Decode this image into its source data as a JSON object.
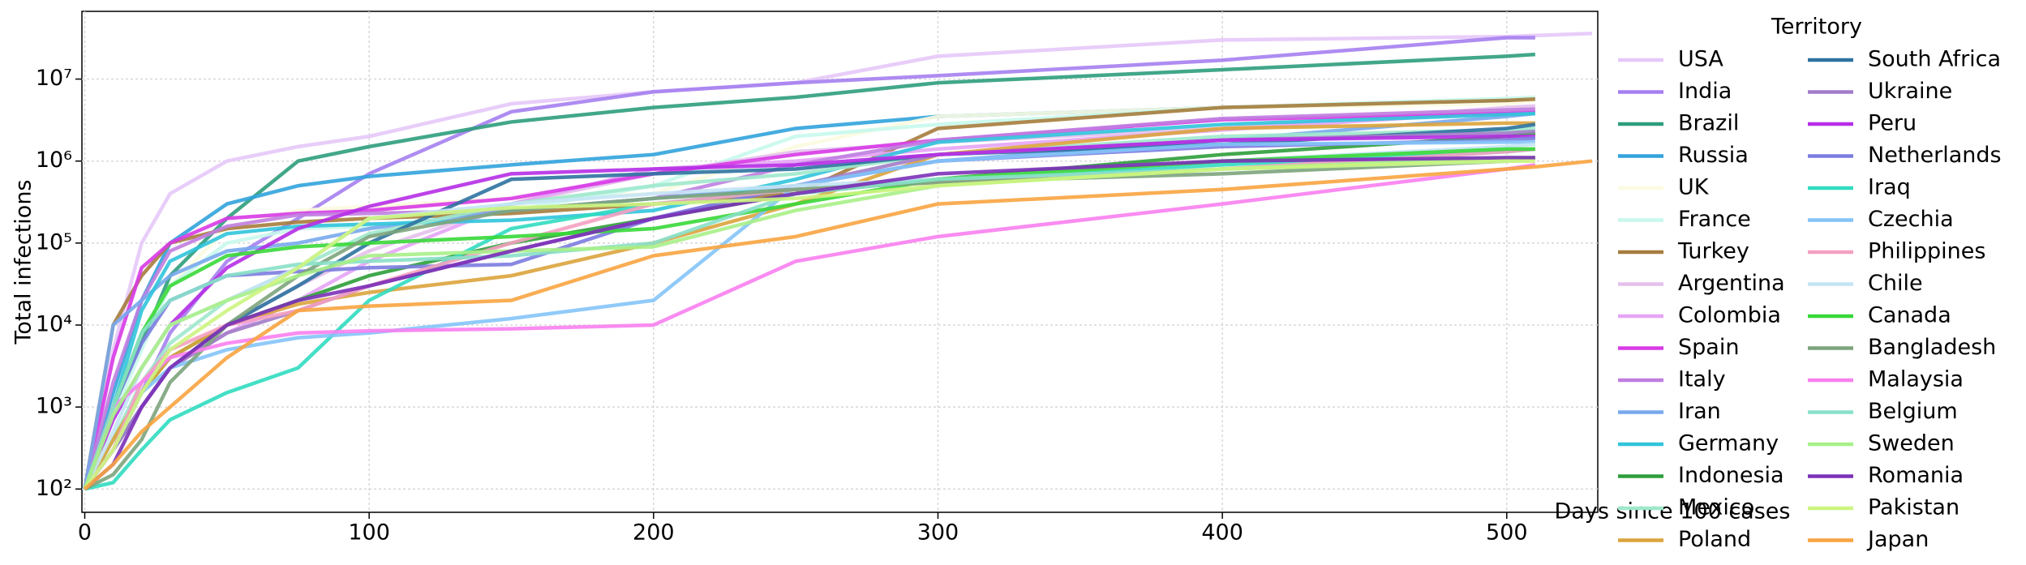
{
  "chart_data": {
    "type": "line",
    "xlabel": "Days since 100 cases",
    "ylabel": "Total infections",
    "legend_title": "Territory",
    "log_y": true,
    "grid": true,
    "legend": "outside right",
    "xlim": [
      -1,
      532
    ],
    "ylim": [
      52,
      67000000
    ],
    "xticks": [
      0,
      100,
      200,
      300,
      400,
      500
    ],
    "yticks": [
      {
        "value": 100,
        "label": "10²"
      },
      {
        "value": 1000,
        "label": "10³"
      },
      {
        "value": 10000,
        "label": "10⁴"
      },
      {
        "value": 100000,
        "label": "10⁵"
      },
      {
        "value": 1000000,
        "label": "10⁶"
      },
      {
        "value": 10000000,
        "label": "10⁷"
      }
    ],
    "x": [
      0,
      10,
      20,
      30,
      50,
      75,
      100,
      150,
      200,
      250,
      300,
      400,
      500,
      510,
      530
    ],
    "series": [
      {
        "name": "USA",
        "color": "#e6c8f8",
        "values": [
          100,
          5000,
          100000,
          400000,
          1000000,
          1500000,
          2000000,
          5000000,
          7000000,
          9000000,
          19000000,
          30000000,
          33000000,
          34000000,
          36000000
        ]
      },
      {
        "name": "India",
        "color": "#a57ff0",
        "values": [
          100,
          300,
          1500,
          8000,
          60000,
          200000,
          700000,
          4000000,
          7000000,
          9000000,
          11000000,
          17000000,
          32000000,
          32000000,
          null
        ]
      },
      {
        "name": "Brazil",
        "color": "#2e9d7c",
        "values": [
          100,
          1000,
          6000,
          40000,
          200000,
          1000000,
          1500000,
          3000000,
          4500000,
          6000000,
          9000000,
          13000000,
          19000000,
          20000000,
          null
        ]
      },
      {
        "name": "Russia",
        "color": "#31a3dc",
        "values": [
          100,
          1500,
          20000,
          100000,
          300000,
          500000,
          650000,
          900000,
          1200000,
          2500000,
          3500000,
          4500000,
          5500000,
          5700000,
          null
        ]
      },
      {
        "name": "UK",
        "color": "#fbfbe0",
        "values": [
          100,
          1000,
          8000,
          30000,
          150000,
          250000,
          280000,
          350000,
          400000,
          1500000,
          3500000,
          4500000,
          5000000,
          5500000,
          null
        ]
      },
      {
        "name": "France",
        "color": "#c8f8ec",
        "values": [
          100,
          800,
          5000,
          30000,
          100000,
          150000,
          160000,
          250000,
          500000,
          2000000,
          2800000,
          4500000,
          5800000,
          6000000,
          null
        ]
      },
      {
        "name": "Turkey",
        "color": "#a67c3c",
        "values": [
          100,
          10000,
          40000,
          100000,
          150000,
          180000,
          200000,
          230000,
          300000,
          400000,
          2500000,
          4500000,
          5500000,
          5700000,
          null
        ]
      },
      {
        "name": "Argentina",
        "color": "#e4c0ec",
        "values": [
          100,
          300,
          1000,
          3000,
          10000,
          30000,
          80000,
          300000,
          700000,
          1300000,
          1700000,
          2500000,
          4500000,
          4700000,
          null
        ]
      },
      {
        "name": "Colombia",
        "color": "#e6a4f6",
        "values": [
          100,
          300,
          1000,
          3000,
          8000,
          20000,
          60000,
          300000,
          800000,
          1000000,
          1400000,
          2400000,
          4000000,
          4200000,
          null
        ]
      },
      {
        "name": "Spain",
        "color": "#d83ae6",
        "values": [
          100,
          4000,
          50000,
          100000,
          200000,
          230000,
          250000,
          350000,
          700000,
          1200000,
          1800000,
          3200000,
          3800000,
          3900000,
          null
        ]
      },
      {
        "name": "Italy",
        "color": "#c07ee0",
        "values": [
          100,
          2000,
          20000,
          80000,
          160000,
          220000,
          230000,
          250000,
          350000,
          900000,
          1800000,
          3300000,
          4200000,
          4300000,
          null
        ]
      },
      {
        "name": "Iran",
        "color": "#78a8ec",
        "values": [
          100,
          10000,
          20000,
          40000,
          80000,
          100000,
          150000,
          250000,
          350000,
          500000,
          1000000,
          1800000,
          3500000,
          3800000,
          null
        ]
      },
      {
        "name": "Germany",
        "color": "#30c4dc",
        "values": [
          100,
          1000,
          15000,
          60000,
          130000,
          160000,
          170000,
          190000,
          250000,
          600000,
          1700000,
          2800000,
          3700000,
          3800000,
          null
        ]
      },
      {
        "name": "Indonesia",
        "color": "#2e9e3a",
        "values": [
          100,
          400,
          1500,
          4000,
          10000,
          20000,
          40000,
          100000,
          200000,
          400000,
          600000,
          1200000,
          2000000,
          2200000,
          null
        ]
      },
      {
        "name": "Mexico",
        "color": "#9ee8cc",
        "values": [
          100,
          400,
          2000,
          6000,
          20000,
          50000,
          130000,
          300000,
          500000,
          700000,
          1200000,
          2000000,
          2400000,
          2500000,
          null
        ]
      },
      {
        "name": "Poland",
        "color": "#dca43c",
        "values": [
          100,
          400,
          1500,
          4000,
          10000,
          18000,
          25000,
          40000,
          100000,
          300000,
          1200000,
          2500000,
          2900000,
          2900000,
          null
        ]
      },
      {
        "name": "South Africa",
        "color": "#2e72a0",
        "values": [
          100,
          300,
          1000,
          3000,
          10000,
          30000,
          100000,
          600000,
          700000,
          800000,
          1200000,
          1600000,
          2500000,
          2800000,
          null
        ]
      },
      {
        "name": "Ukraine",
        "color": "#a27cc8",
        "values": [
          100,
          300,
          1000,
          3000,
          8000,
          15000,
          30000,
          80000,
          200000,
          500000,
          1200000,
          1800000,
          2200000,
          2300000,
          null
        ]
      },
      {
        "name": "Peru",
        "color": "#b62ee6",
        "values": [
          100,
          700,
          3000,
          10000,
          50000,
          150000,
          280000,
          700000,
          800000,
          900000,
          1200000,
          1800000,
          2000000,
          2000000,
          null
        ]
      },
      {
        "name": "Netherlands",
        "color": "#7c7ce0",
        "values": [
          100,
          1000,
          6000,
          20000,
          40000,
          45000,
          50000,
          55000,
          200000,
          500000,
          1000000,
          1500000,
          1800000,
          1900000,
          null
        ]
      },
      {
        "name": "Iraq",
        "color": "#30dcc0",
        "values": [
          100,
          120,
          300,
          700,
          1500,
          3000,
          20000,
          150000,
          300000,
          450000,
          600000,
          900000,
          1300000,
          1400000,
          null
        ]
      },
      {
        "name": "Czechia",
        "color": "#84c4f8",
        "values": [
          100,
          300,
          1500,
          3000,
          5000,
          7000,
          8000,
          12000,
          20000,
          500000,
          1000000,
          1600000,
          1700000,
          1700000,
          null
        ]
      },
      {
        "name": "Philippines",
        "color": "#f4a0c0",
        "values": [
          100,
          300,
          2000,
          5000,
          10000,
          15000,
          30000,
          100000,
          300000,
          450000,
          550000,
          800000,
          1300000,
          1400000,
          null
        ]
      },
      {
        "name": "Chile",
        "color": "#c4e4f4",
        "values": [
          100,
          500,
          3000,
          10000,
          20000,
          50000,
          200000,
          300000,
          400000,
          500000,
          600000,
          1000000,
          1500000,
          1600000,
          null
        ]
      },
      {
        "name": "Canada",
        "color": "#38d838",
        "values": [
          100,
          1000,
          8000,
          30000,
          70000,
          90000,
          100000,
          120000,
          150000,
          300000,
          600000,
          1000000,
          1400000,
          1400000,
          null
        ]
      },
      {
        "name": "Bangladesh",
        "color": "#7ca47c",
        "values": [
          100,
          150,
          400,
          2000,
          10000,
          40000,
          120000,
          250000,
          350000,
          450000,
          550000,
          700000,
          1000000,
          1100000,
          null
        ]
      },
      {
        "name": "Malaysia",
        "color": "#f880f0",
        "values": [
          100,
          1000,
          2000,
          4000,
          6000,
          8000,
          8500,
          9000,
          10000,
          60000,
          120000,
          300000,
          800000,
          900000,
          null
        ]
      },
      {
        "name": "Belgium",
        "color": "#88e0c8",
        "values": [
          100,
          1000,
          8000,
          20000,
          40000,
          55000,
          60000,
          70000,
          100000,
          400000,
          600000,
          800000,
          1000000,
          1100000,
          null
        ]
      },
      {
        "name": "Sweden",
        "color": "#a8f088",
        "values": [
          100,
          800,
          3000,
          10000,
          20000,
          40000,
          70000,
          80000,
          90000,
          250000,
          500000,
          800000,
          1100000,
          1100000,
          null
        ]
      },
      {
        "name": "Romania",
        "color": "#7c30b8",
        "values": [
          100,
          200,
          1000,
          3000,
          10000,
          20000,
          30000,
          80000,
          200000,
          400000,
          700000,
          1000000,
          1100000,
          1100000,
          null
        ]
      },
      {
        "name": "Pakistan",
        "color": "#ccf480",
        "values": [
          100,
          300,
          1500,
          5000,
          15000,
          50000,
          200000,
          270000,
          300000,
          350000,
          500000,
          800000,
          1000000,
          1000000,
          null
        ]
      },
      {
        "name": "Japan",
        "color": "#f8a440",
        "values": [
          100,
          200,
          500,
          1000,
          4000,
          15000,
          17000,
          20000,
          70000,
          120000,
          300000,
          450000,
          800000,
          850000,
          1000000
        ]
      }
    ]
  }
}
